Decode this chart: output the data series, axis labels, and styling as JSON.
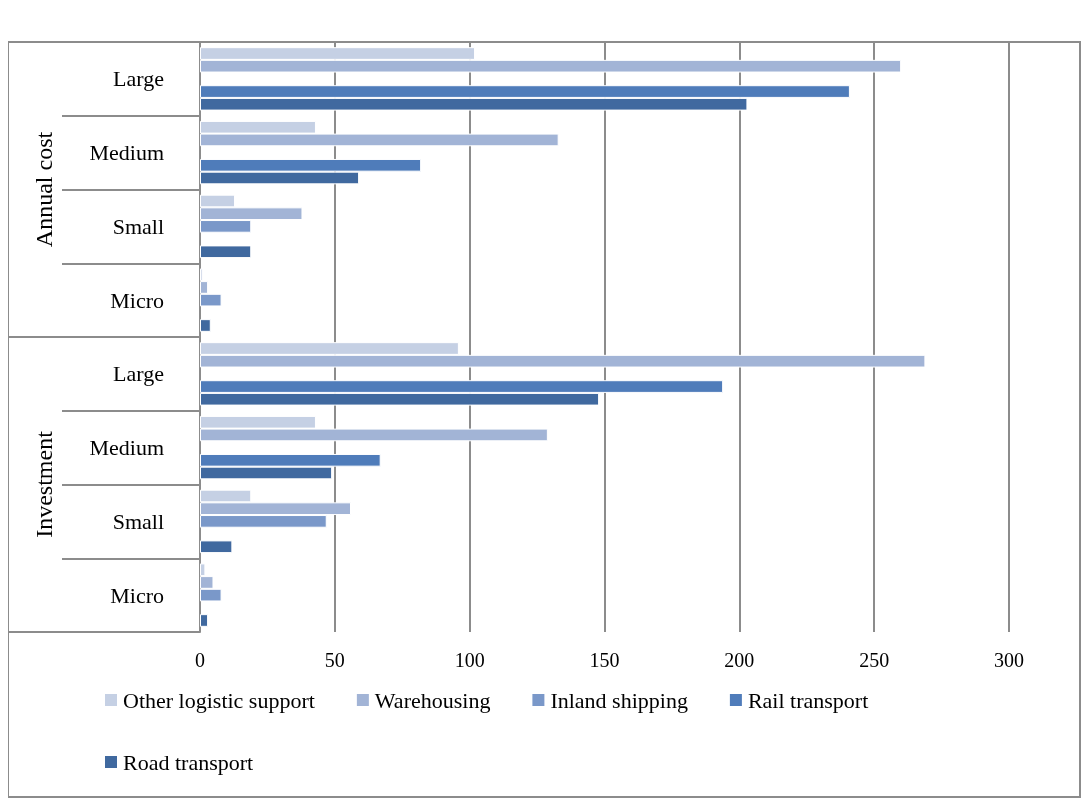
{
  "chart_data": {
    "type": "bar",
    "orientation": "horizontal",
    "categories": [
      "Large",
      "Medium",
      "Small",
      "Micro",
      "Large",
      "Medium",
      "Small",
      "Micro"
    ],
    "annotations": [
      "Annual cost",
      "Investment"
    ],
    "series": [
      {
        "name": "Other logistic support",
        "color": "#c5d0e4",
        "values": [
          102,
          43,
          13,
          1,
          96,
          43,
          19,
          2
        ]
      },
      {
        "name": "Warehousing",
        "color": "#a2b4d6",
        "values": [
          260,
          133,
          38,
          3,
          269,
          129,
          56,
          5
        ]
      },
      {
        "name": "Inland shipping",
        "color": "#7a98c9",
        "values": [
          null,
          null,
          19,
          8,
          null,
          null,
          47,
          8
        ]
      },
      {
        "name": "Rail transport",
        "color": "#4f7cba",
        "values": [
          241,
          82,
          null,
          null,
          194,
          67,
          null,
          null
        ]
      },
      {
        "name": "Road transport",
        "color": "#40699f",
        "values": [
          203,
          59,
          19,
          4,
          148,
          49,
          12,
          3
        ]
      }
    ],
    "xlim": [
      0,
      300
    ],
    "xticks": [
      0,
      50,
      100,
      150,
      200,
      250,
      300
    ],
    "grid": "x",
    "legend": "bottom"
  }
}
